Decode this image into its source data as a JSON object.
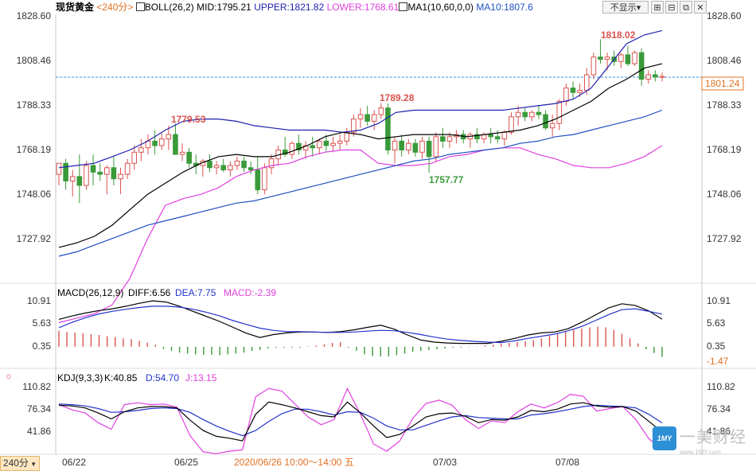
{
  "main_header": {
    "symbol": "现货黄金",
    "period": "<240分>",
    "boll": "BOLL(26,2)",
    "mid": "MID:1795.21",
    "upper": "UPPER:1821.82",
    "lower": "LOWER:1768.61",
    "ma": "MA1(10,60,0,0)",
    "ma10": "MA10:1807.6"
  },
  "buttons": {
    "hide": "不显示▾",
    "icons": [
      "expand-icon",
      "collapse-icon",
      "restore-icon",
      "close-icon"
    ]
  },
  "macd_header": {
    "name": "MACD(26,12,9)",
    "diff": "DIFF:6.56",
    "dea": "DEA:7.75",
    "macd": "MACD:-2.39"
  },
  "kdj_header": {
    "name": "KDJ(9,3,3)",
    "k": "K:40.85",
    "d": "D:54.70",
    "j": "J:13.15"
  },
  "price_axis": [
    "1828.60",
    "1808.46",
    "1788.33",
    "1768.19",
    "1748.06",
    "1727.92"
  ],
  "macd_axis_right": [
    "10.91",
    "5.63",
    "0.35",
    "-1.47"
  ],
  "macd_axis_left": [
    "10.91",
    "5.63",
    "0.35"
  ],
  "kdj_axis": [
    "110.82",
    "76.34",
    "41.86"
  ],
  "current_price": "1801.24",
  "annotations": {
    "high_1": "1779.53",
    "high_2": "1789.28",
    "low_1": "1757.77",
    "high_3": "1818.02"
  },
  "x_axis": {
    "labels": [
      "06/22",
      "06/25",
      "07/03",
      "07/08"
    ],
    "crosshair_label": "2020/06/26 10:00～14:00 五"
  },
  "period_button": "240分",
  "logo": {
    "name": "一美财经",
    "url": "www.1MY.com",
    "mark": "1MY"
  },
  "colors": {
    "up": "#d9534f",
    "down": "#3a9a3a",
    "boll_upper": "#1f1fb0",
    "boll_mid": "#000000",
    "boll_lower": "#e040e0",
    "ma10": "#1f4fc4",
    "dea": "#2233cc",
    "j_line": "#e040e0",
    "crosshair_label": "#e07020",
    "axis_text": "#333333"
  },
  "chart_data": [
    {
      "type": "candlestick",
      "title": "现货黄金 <240分>",
      "ylim": [
        1716,
        1834
      ],
      "candles": [
        [
          1757,
          1762,
          1752,
          1762
        ],
        [
          1762,
          1764,
          1750,
          1754
        ],
        [
          1754,
          1759,
          1747,
          1756
        ],
        [
          1756,
          1766,
          1744,
          1752
        ],
        [
          1752,
          1763,
          1750,
          1761
        ],
        [
          1761,
          1766,
          1752,
          1758
        ],
        [
          1758,
          1762,
          1754,
          1757
        ],
        [
          1757,
          1761,
          1748,
          1760
        ],
        [
          1760,
          1765,
          1752,
          1755
        ],
        [
          1755,
          1760,
          1748,
          1757
        ],
        [
          1757,
          1764,
          1755,
          1762
        ],
        [
          1762,
          1770,
          1759,
          1767
        ],
        [
          1767,
          1773,
          1763,
          1769
        ],
        [
          1769,
          1775,
          1766,
          1772
        ],
        [
          1772,
          1777,
          1766,
          1770
        ],
        [
          1770,
          1776,
          1768,
          1773
        ],
        [
          1773,
          1779,
          1768,
          1775
        ],
        [
          1775,
          1780,
          1766,
          1766
        ],
        [
          1766,
          1771,
          1763,
          1767
        ],
        [
          1767,
          1769,
          1760,
          1762
        ],
        [
          1762,
          1766,
          1757,
          1761
        ],
        [
          1761,
          1764,
          1756,
          1763
        ],
        [
          1763,
          1766,
          1758,
          1760
        ],
        [
          1760,
          1763,
          1757,
          1761
        ],
        [
          1761,
          1764,
          1758,
          1759
        ],
        [
          1759,
          1763,
          1756,
          1761
        ],
        [
          1761,
          1765,
          1759,
          1763
        ],
        [
          1763,
          1765,
          1758,
          1760
        ],
        [
          1760,
          1763,
          1757,
          1759
        ],
        [
          1759,
          1765,
          1748,
          1750
        ],
        [
          1750,
          1762,
          1748,
          1760
        ],
        [
          1760,
          1766,
          1757,
          1764
        ],
        [
          1764,
          1770,
          1761,
          1768
        ],
        [
          1768,
          1774,
          1765,
          1766
        ],
        [
          1766,
          1772,
          1764,
          1771
        ],
        [
          1771,
          1775,
          1766,
          1768
        ],
        [
          1768,
          1772,
          1764,
          1770
        ],
        [
          1770,
          1774,
          1765,
          1769
        ],
        [
          1769,
          1773,
          1766,
          1772
        ],
        [
          1772,
          1775,
          1767,
          1770
        ],
        [
          1770,
          1774,
          1767,
          1771
        ],
        [
          1771,
          1775,
          1768,
          1772
        ],
        [
          1772,
          1778,
          1770,
          1776
        ],
        [
          1776,
          1784,
          1774,
          1782
        ],
        [
          1782,
          1787,
          1778,
          1784
        ],
        [
          1784,
          1788,
          1779,
          1781
        ],
        [
          1781,
          1786,
          1777,
          1784
        ],
        [
          1784,
          1789.28,
          1782,
          1787
        ],
        [
          1787,
          1789,
          1766,
          1768
        ],
        [
          1768,
          1774,
          1762,
          1772
        ],
        [
          1772,
          1775,
          1765,
          1768
        ],
        [
          1768,
          1773,
          1766,
          1771
        ],
        [
          1771,
          1773,
          1765,
          1767
        ],
        [
          1767,
          1774,
          1764,
          1772
        ],
        [
          1772,
          1774,
          1757.77,
          1765
        ],
        [
          1765,
          1776,
          1763,
          1774
        ],
        [
          1774,
          1778,
          1769,
          1772
        ],
        [
          1772,
          1776,
          1769,
          1774
        ],
        [
          1774,
          1777,
          1771,
          1775
        ],
        [
          1775,
          1777,
          1771,
          1773
        ],
        [
          1773,
          1776,
          1769,
          1775
        ],
        [
          1775,
          1778,
          1771,
          1773
        ],
        [
          1773,
          1776,
          1771,
          1775
        ],
        [
          1775,
          1778,
          1771,
          1774
        ],
        [
          1774,
          1777,
          1771,
          1773
        ],
        [
          1773,
          1777,
          1770,
          1776
        ],
        [
          1776,
          1785,
          1775,
          1783
        ],
        [
          1783,
          1788,
          1779,
          1785
        ],
        [
          1785,
          1787,
          1781,
          1783
        ],
        [
          1783,
          1786,
          1781,
          1785
        ],
        [
          1785,
          1788,
          1782,
          1784
        ],
        [
          1784,
          1786,
          1777,
          1778
        ],
        [
          1778,
          1784,
          1774,
          1780
        ],
        [
          1780,
          1791,
          1777,
          1790
        ],
        [
          1790,
          1798,
          1788,
          1796
        ],
        [
          1796,
          1799,
          1791,
          1794
        ],
        [
          1794,
          1798,
          1792,
          1795
        ],
        [
          1795,
          1805,
          1793,
          1802
        ],
        [
          1802,
          1812,
          1800,
          1810
        ],
        [
          1810,
          1818.02,
          1807,
          1809
        ],
        [
          1809,
          1812,
          1804,
          1810
        ],
        [
          1810,
          1813,
          1806,
          1808
        ],
        [
          1808,
          1812,
          1805,
          1811
        ],
        [
          1811,
          1815,
          1806,
          1807
        ],
        [
          1807,
          1813,
          1806,
          1812
        ],
        [
          1812,
          1814,
          1797,
          1800
        ],
        [
          1800,
          1804,
          1798,
          1802
        ],
        [
          1802,
          1804,
          1799,
          1801
        ],
        [
          1801,
          1803,
          1799,
          1801.24
        ]
      ],
      "boll_upper": [
        1760,
        1761,
        1762,
        1765,
        1768,
        1772,
        1777,
        1781,
        1782,
        1782,
        1781,
        1779,
        1778,
        1777,
        1777,
        1777,
        1776,
        1777,
        1780,
        1785,
        1786,
        1786,
        1786,
        1786,
        1786,
        1786,
        1787,
        1788,
        1789,
        1791,
        1796,
        1806,
        1816,
        1820,
        1822
      ],
      "boll_mid": [
        1724,
        1726,
        1729,
        1734,
        1741,
        1748,
        1753,
        1758,
        1762,
        1765,
        1766,
        1765,
        1765,
        1767,
        1770,
        1774,
        1776,
        1775,
        1773,
        1774,
        1775,
        1775,
        1775,
        1774,
        1775,
        1776,
        1777,
        1779,
        1782,
        1786,
        1790,
        1796,
        1800,
        1805,
        1807
      ],
      "boll_lower": [
        1690,
        1692,
        1694,
        1698,
        1710,
        1728,
        1743,
        1746,
        1748,
        1751,
        1756,
        1759,
        1761,
        1762,
        1765,
        1767,
        1768,
        1768,
        1762,
        1761,
        1761,
        1762,
        1765,
        1766,
        1768,
        1769,
        1769,
        1766,
        1764,
        1761,
        1760,
        1760,
        1762,
        1765,
        1770
      ],
      "ma10": [
        1720,
        1722,
        1725,
        1728,
        1731,
        1734,
        1736,
        1738,
        1740,
        1742,
        1744,
        1745,
        1747,
        1749,
        1751,
        1753,
        1755,
        1757,
        1759,
        1761,
        1763,
        1764,
        1766,
        1767,
        1768,
        1769,
        1771,
        1772,
        1774,
        1775,
        1777,
        1779,
        1781,
        1783,
        1786
      ]
    },
    {
      "type": "bar",
      "title": "MACD(26,12,9)",
      "ylim": [
        -3.5,
        12
      ],
      "macd": [
        3.8,
        3.5,
        3.4,
        3.2,
        3.0,
        2.8,
        2.5,
        2.3,
        2.0,
        1.8,
        1.4,
        1.0,
        0.5,
        -0.5,
        -1.0,
        -1.4,
        -1.6,
        -1.8,
        -1.9,
        -1.9,
        -2.0,
        -1.8,
        -1.6,
        -1.4,
        -1.0,
        -0.8,
        -0.4,
        -0.2,
        -0.2,
        -0.2,
        -0.2,
        0.1,
        0.3,
        0.6,
        0.9,
        1.1,
        -0.2,
        -1.0,
        -1.8,
        -2.2,
        -2.3,
        -2.3,
        -2.0,
        -1.6,
        -1.2,
        -1.0,
        -0.8,
        -0.6,
        -0.4,
        -0.2,
        -0.2,
        -0.1,
        0.1,
        0.3,
        0.5,
        0.7,
        0.9,
        1.1,
        1.3,
        1.6,
        2.0,
        2.6,
        3.1,
        3.6,
        4.0,
        4.3,
        4.6,
        4.8,
        4.6,
        4.0,
        3.1,
        2.0,
        0.8,
        -0.6,
        -1.5,
        -2.39
      ],
      "diff": [
        6.5,
        7.3,
        8.0,
        8.6,
        9.0,
        9.6,
        10.3,
        10.9,
        10.6,
        9.6,
        8.4,
        7.2,
        6.0,
        4.6,
        3.2,
        2.2,
        2.9,
        3.3,
        3.5,
        3.5,
        3.4,
        3.6,
        4.0,
        4.6,
        5.1,
        4.2,
        2.8,
        1.6,
        1.1,
        0.9,
        0.8,
        0.8,
        0.8,
        1.3,
        2.0,
        2.8,
        3.3,
        3.5,
        4.3,
        5.8,
        7.5,
        9.2,
        10.2,
        9.8,
        8.5,
        6.56
      ],
      "dea": [
        4.5,
        5.8,
        6.9,
        7.8,
        8.4,
        8.9,
        9.3,
        9.6,
        9.6,
        9.4,
        8.9,
        8.2,
        7.3,
        6.2,
        5.3,
        4.4,
        3.9,
        3.6,
        3.6,
        3.5,
        3.4,
        3.4,
        3.5,
        3.7,
        3.9,
        3.8,
        3.4,
        2.9,
        2.3,
        1.8,
        1.5,
        1.3,
        1.1,
        1.0,
        1.4,
        2.0,
        2.5,
        3.0,
        3.8,
        4.8,
        6.2,
        7.6,
        8.8,
        9.0,
        8.4,
        7.75
      ]
    },
    {
      "type": "line",
      "title": "KDJ(9,3,3)",
      "ylim": [
        8,
        120
      ],
      "k": [
        82,
        81,
        78,
        70,
        61,
        72,
        78,
        80,
        80,
        78,
        59,
        43,
        34,
        31,
        27,
        68,
        87,
        83,
        78,
        72,
        66,
        64,
        87,
        70,
        50,
        32,
        37,
        50,
        64,
        69,
        70,
        65,
        55,
        60,
        59,
        64,
        74,
        72,
        76,
        84,
        86,
        81,
        79,
        80,
        73,
        57,
        40.85
      ],
      "d": [
        84,
        83,
        81,
        77,
        71,
        72,
        74,
        77,
        78,
        77,
        71,
        60,
        50,
        42,
        35,
        43,
        57,
        69,
        76,
        76,
        72,
        67,
        72,
        71,
        62,
        50,
        44,
        44,
        51,
        58,
        64,
        66,
        63,
        62,
        61,
        61,
        67,
        69,
        72,
        76,
        80,
        82,
        81,
        80,
        78,
        68,
        54.7
      ],
      "j": [
        83,
        75,
        70,
        55,
        45,
        83,
        86,
        83,
        84,
        79,
        35,
        10,
        7,
        11,
        13,
        95,
        108,
        104,
        84,
        64,
        52,
        60,
        108,
        68,
        22,
        11,
        27,
        62,
        85,
        90,
        82,
        60,
        46,
        58,
        55,
        72,
        84,
        78,
        86,
        99,
        96,
        73,
        77,
        80,
        60,
        30,
        13.15
      ]
    }
  ]
}
